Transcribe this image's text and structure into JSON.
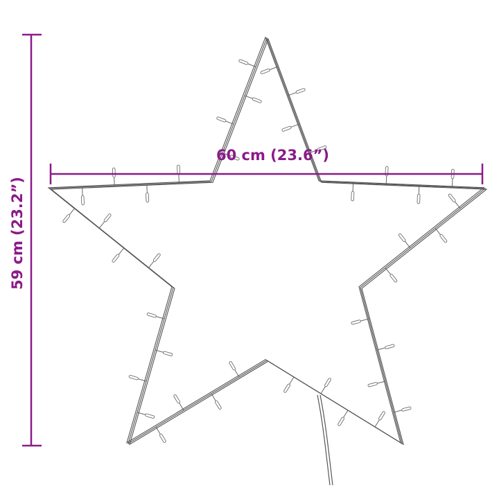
{
  "product": {
    "name": "LED star light",
    "icon": "star-light-outline"
  },
  "dimensions": {
    "width_label": "60 cm (23.6”)",
    "height_label": "59 cm (23.2”)"
  },
  "colors": {
    "dimension": "#8b1a89",
    "outline": "#555555"
  }
}
